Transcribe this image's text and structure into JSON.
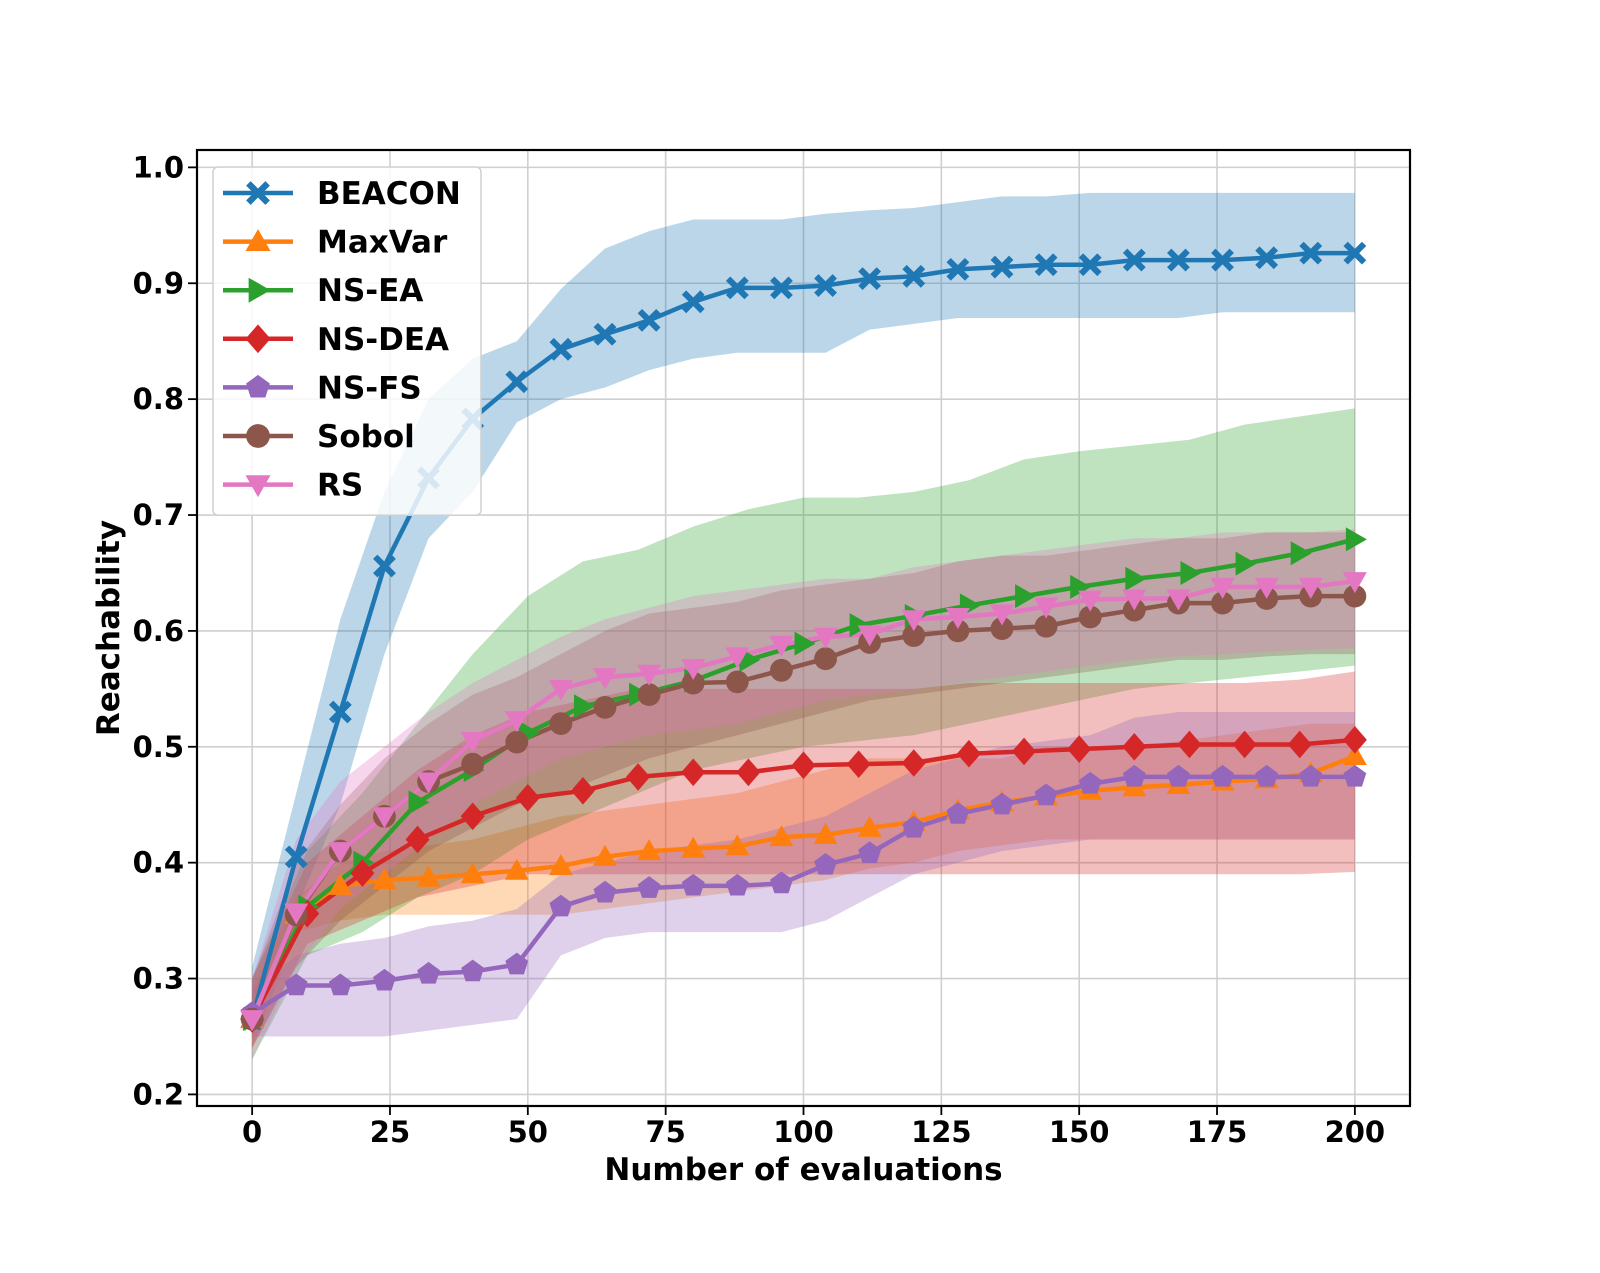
{
  "chart_data": {
    "type": "line",
    "title": "",
    "xlabel": "Number of evaluations",
    "ylabel": "Reachability",
    "xlim": [
      -10,
      210
    ],
    "ylim": [
      0.19,
      1.015
    ],
    "xticks": [
      0,
      25,
      50,
      75,
      100,
      125,
      150,
      175,
      200
    ],
    "xtick_labels": [
      "0",
      "25",
      "50",
      "75",
      "100",
      "125",
      "150",
      "175",
      "200"
    ],
    "yticks": [
      0.2,
      0.3,
      0.4,
      0.5,
      0.6,
      0.7,
      0.8,
      0.9,
      1.0
    ],
    "ytick_labels": [
      "0.2",
      "0.3",
      "0.4",
      "0.5",
      "0.6",
      "0.7",
      "0.8",
      "0.9",
      "1.0"
    ],
    "grid": true,
    "legend_position": "top-left",
    "series": [
      {
        "name": "BEACON",
        "color": "#1f77b4",
        "marker": "x-icon",
        "x": [
          0,
          8,
          16,
          24,
          32,
          40,
          48,
          56,
          64,
          72,
          80,
          88,
          96,
          104,
          112,
          120,
          128,
          136,
          144,
          152,
          160,
          168,
          176,
          184,
          192,
          200
        ],
        "y": [
          0.265,
          0.405,
          0.53,
          0.656,
          0.732,
          0.783,
          0.815,
          0.843,
          0.856,
          0.868,
          0.884,
          0.896,
          0.896,
          0.898,
          0.904,
          0.906,
          0.912,
          0.914,
          0.916,
          0.916,
          0.92,
          0.92,
          0.92,
          0.922,
          0.926,
          0.926
        ],
        "band_upper": [
          0.31,
          0.46,
          0.61,
          0.72,
          0.8,
          0.835,
          0.85,
          0.895,
          0.93,
          0.945,
          0.955,
          0.955,
          0.955,
          0.96,
          0.963,
          0.965,
          0.97,
          0.975,
          0.975,
          0.978,
          0.978,
          0.978,
          0.978,
          0.978,
          0.978,
          0.978
        ],
        "band_lower": [
          0.25,
          0.36,
          0.45,
          0.58,
          0.68,
          0.72,
          0.78,
          0.8,
          0.81,
          0.825,
          0.835,
          0.84,
          0.84,
          0.84,
          0.86,
          0.865,
          0.87,
          0.87,
          0.87,
          0.87,
          0.87,
          0.87,
          0.875,
          0.875,
          0.875,
          0.875
        ]
      },
      {
        "name": "MaxVar",
        "color": "#ff7f0e",
        "marker": "triangle-up-icon",
        "x": [
          0,
          8,
          16,
          24,
          32,
          40,
          48,
          56,
          64,
          72,
          80,
          88,
          96,
          104,
          112,
          120,
          128,
          136,
          144,
          152,
          160,
          168,
          176,
          184,
          192,
          200
        ],
        "y": [
          0.265,
          0.355,
          0.38,
          0.385,
          0.387,
          0.39,
          0.393,
          0.397,
          0.405,
          0.41,
          0.412,
          0.414,
          0.422,
          0.424,
          0.43,
          0.435,
          0.445,
          0.452,
          0.457,
          0.462,
          0.465,
          0.467,
          0.47,
          0.472,
          0.477,
          0.492
        ],
        "band_upper": [
          0.29,
          0.37,
          0.4,
          0.41,
          0.415,
          0.42,
          0.43,
          0.44,
          0.445,
          0.45,
          0.455,
          0.46,
          0.47,
          0.48,
          0.49,
          0.49,
          0.49,
          0.49,
          0.5,
          0.5,
          0.5,
          0.505,
          0.51,
          0.515,
          0.52,
          0.52
        ],
        "band_lower": [
          0.24,
          0.34,
          0.35,
          0.355,
          0.355,
          0.355,
          0.355,
          0.355,
          0.36,
          0.365,
          0.37,
          0.375,
          0.38,
          0.385,
          0.395,
          0.4,
          0.41,
          0.415,
          0.42,
          0.42,
          0.42,
          0.42,
          0.42,
          0.42,
          0.42,
          0.42
        ]
      },
      {
        "name": "NS-EA",
        "color": "#2ca02c",
        "marker": "triangle-right-icon",
        "x": [
          0,
          10,
          20,
          30,
          40,
          50,
          60,
          70,
          80,
          90,
          100,
          110,
          120,
          130,
          140,
          150,
          160,
          170,
          180,
          190,
          200
        ],
        "y": [
          0.265,
          0.362,
          0.4,
          0.452,
          0.48,
          0.512,
          0.535,
          0.545,
          0.557,
          0.575,
          0.589,
          0.605,
          0.613,
          0.622,
          0.63,
          0.638,
          0.645,
          0.65,
          0.658,
          0.667,
          0.679
        ],
        "band_upper": [
          0.3,
          0.41,
          0.46,
          0.52,
          0.58,
          0.63,
          0.66,
          0.67,
          0.69,
          0.705,
          0.715,
          0.715,
          0.72,
          0.73,
          0.748,
          0.755,
          0.76,
          0.765,
          0.778,
          0.785,
          0.792
        ],
        "band_lower": [
          0.23,
          0.32,
          0.34,
          0.37,
          0.39,
          0.42,
          0.44,
          0.46,
          0.48,
          0.49,
          0.5,
          0.505,
          0.51,
          0.52,
          0.53,
          0.54,
          0.55,
          0.555,
          0.56,
          0.565,
          0.57
        ]
      },
      {
        "name": "NS-DEA",
        "color": "#d62728",
        "marker": "diamond-icon",
        "x": [
          0,
          10,
          20,
          30,
          40,
          50,
          60,
          70,
          80,
          90,
          100,
          110,
          120,
          130,
          140,
          150,
          160,
          170,
          180,
          190,
          200
        ],
        "y": [
          0.265,
          0.356,
          0.391,
          0.42,
          0.44,
          0.456,
          0.462,
          0.474,
          0.478,
          0.478,
          0.484,
          0.485,
          0.486,
          0.494,
          0.496,
          0.498,
          0.5,
          0.502,
          0.502,
          0.502,
          0.506
        ],
        "band_upper": [
          0.3,
          0.4,
          0.44,
          0.48,
          0.51,
          0.53,
          0.54,
          0.55,
          0.55,
          0.55,
          0.55,
          0.55,
          0.55,
          0.555,
          0.555,
          0.555,
          0.555,
          0.555,
          0.555,
          0.558,
          0.565
        ],
        "band_lower": [
          0.24,
          0.33,
          0.35,
          0.37,
          0.38,
          0.39,
          0.39,
          0.39,
          0.39,
          0.39,
          0.39,
          0.39,
          0.39,
          0.39,
          0.39,
          0.39,
          0.39,
          0.39,
          0.39,
          0.39,
          0.392
        ]
      },
      {
        "name": "NS-FS",
        "color": "#9467bd",
        "marker": "pentagon-icon",
        "x": [
          0,
          8,
          16,
          24,
          32,
          40,
          48,
          56,
          64,
          72,
          80,
          88,
          96,
          104,
          112,
          120,
          128,
          136,
          144,
          152,
          160,
          168,
          176,
          184,
          192,
          200
        ],
        "y": [
          0.27,
          0.294,
          0.294,
          0.298,
          0.304,
          0.306,
          0.312,
          0.362,
          0.374,
          0.378,
          0.38,
          0.38,
          0.382,
          0.398,
          0.408,
          0.43,
          0.442,
          0.45,
          0.458,
          0.468,
          0.474,
          0.474,
          0.474,
          0.474,
          0.474,
          0.474
        ],
        "band_upper": [
          0.29,
          0.32,
          0.33,
          0.335,
          0.345,
          0.35,
          0.36,
          0.39,
          0.4,
          0.41,
          0.415,
          0.42,
          0.43,
          0.44,
          0.46,
          0.48,
          0.49,
          0.5,
          0.505,
          0.51,
          0.525,
          0.53,
          0.53,
          0.53,
          0.53,
          0.53
        ],
        "band_lower": [
          0.25,
          0.25,
          0.25,
          0.25,
          0.255,
          0.26,
          0.265,
          0.32,
          0.335,
          0.34,
          0.34,
          0.34,
          0.34,
          0.35,
          0.37,
          0.39,
          0.4,
          0.41,
          0.415,
          0.42,
          0.42,
          0.42,
          0.42,
          0.42,
          0.42,
          0.42
        ]
      },
      {
        "name": "Sobol",
        "color": "#8c564b",
        "marker": "circle-icon",
        "x": [
          0,
          8,
          16,
          24,
          32,
          40,
          48,
          56,
          64,
          72,
          80,
          88,
          96,
          104,
          112,
          120,
          128,
          136,
          144,
          152,
          160,
          168,
          176,
          184,
          192,
          200
        ],
        "y": [
          0.265,
          0.355,
          0.41,
          0.44,
          0.47,
          0.485,
          0.504,
          0.52,
          0.534,
          0.545,
          0.555,
          0.556,
          0.566,
          0.576,
          0.59,
          0.596,
          0.6,
          0.602,
          0.604,
          0.612,
          0.618,
          0.624,
          0.624,
          0.628,
          0.63,
          0.63
        ],
        "band_upper": [
          0.3,
          0.4,
          0.45,
          0.49,
          0.52,
          0.545,
          0.56,
          0.58,
          0.6,
          0.615,
          0.62,
          0.625,
          0.635,
          0.64,
          0.645,
          0.65,
          0.66,
          0.665,
          0.665,
          0.67,
          0.675,
          0.68,
          0.68,
          0.685,
          0.685,
          0.685
        ],
        "band_lower": [
          0.24,
          0.31,
          0.35,
          0.38,
          0.41,
          0.43,
          0.45,
          0.46,
          0.475,
          0.49,
          0.5,
          0.51,
          0.52,
          0.53,
          0.54,
          0.545,
          0.55,
          0.555,
          0.56,
          0.565,
          0.57,
          0.575,
          0.575,
          0.578,
          0.58,
          0.58
        ]
      },
      {
        "name": "RS",
        "color": "#e377c2",
        "marker": "triangle-down-icon",
        "x": [
          0,
          8,
          16,
          24,
          32,
          40,
          48,
          56,
          64,
          72,
          80,
          88,
          96,
          104,
          112,
          120,
          128,
          136,
          144,
          152,
          160,
          168,
          176,
          184,
          192,
          200
        ],
        "y": [
          0.265,
          0.357,
          0.41,
          0.44,
          0.47,
          0.505,
          0.523,
          0.55,
          0.56,
          0.563,
          0.568,
          0.578,
          0.588,
          0.595,
          0.597,
          0.61,
          0.612,
          0.615,
          0.621,
          0.627,
          0.628,
          0.628,
          0.638,
          0.638,
          0.638,
          0.643
        ],
        "band_upper": [
          0.3,
          0.42,
          0.47,
          0.5,
          0.53,
          0.555,
          0.575,
          0.595,
          0.61,
          0.62,
          0.63,
          0.635,
          0.64,
          0.645,
          0.645,
          0.655,
          0.66,
          0.665,
          0.67,
          0.675,
          0.68,
          0.68,
          0.685,
          0.685,
          0.685,
          0.688
        ],
        "band_lower": [
          0.23,
          0.31,
          0.36,
          0.39,
          0.42,
          0.45,
          0.47,
          0.49,
          0.5,
          0.51,
          0.515,
          0.52,
          0.53,
          0.54,
          0.545,
          0.55,
          0.555,
          0.56,
          0.565,
          0.57,
          0.575,
          0.578,
          0.58,
          0.582,
          0.584,
          0.585
        ]
      }
    ]
  }
}
